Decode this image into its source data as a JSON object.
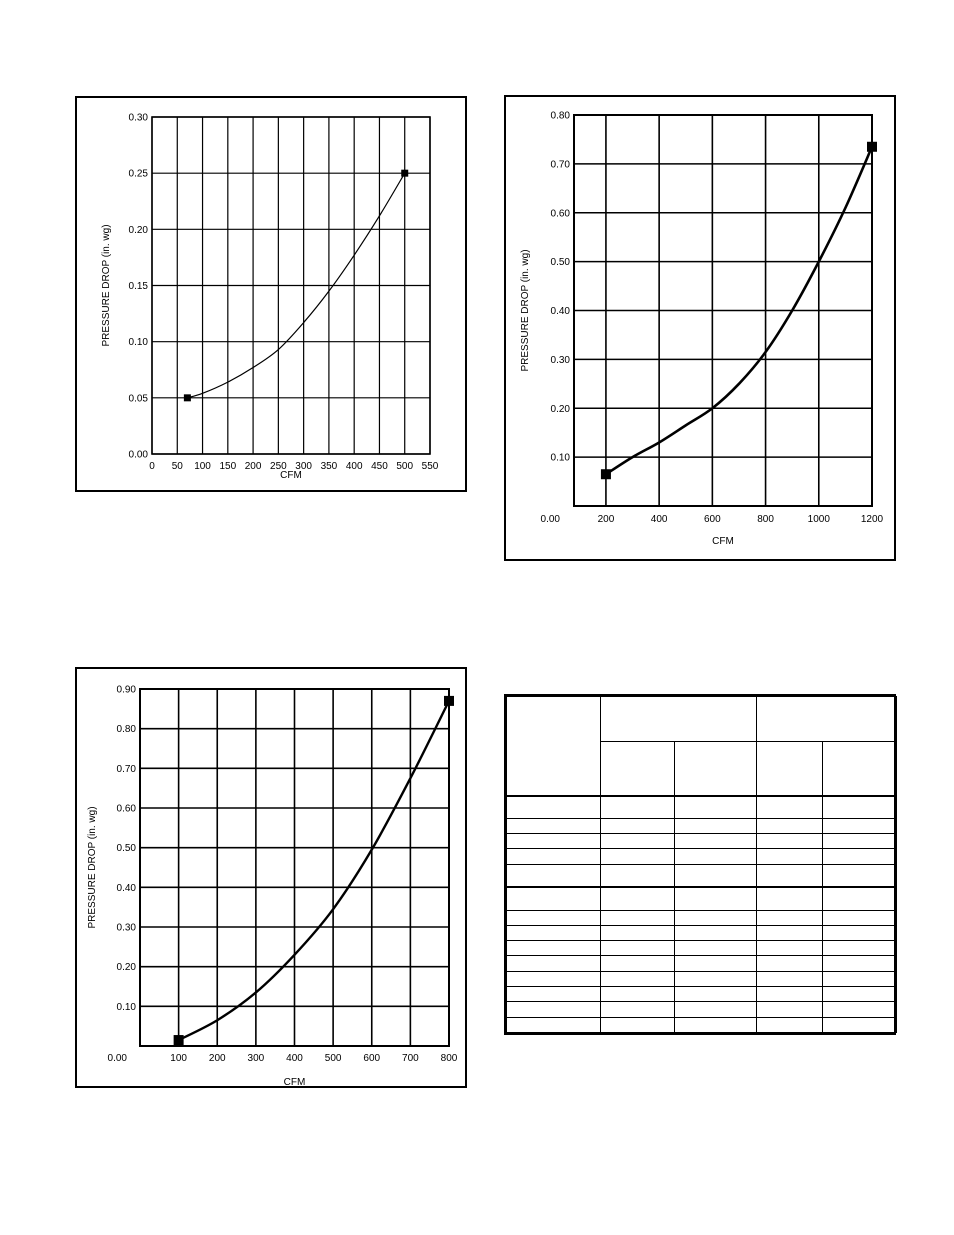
{
  "chart_data": [
    {
      "id": "chart-a",
      "type": "line",
      "xlabel": "CFM",
      "ylabel": "PRESSURE DROP (in. wg)",
      "xlim": [
        0,
        550
      ],
      "ylim": [
        0,
        0.3
      ],
      "x_ticks": [
        0,
        50,
        100,
        150,
        200,
        250,
        300,
        350,
        400,
        450,
        500,
        550
      ],
      "x_tick_labels": [
        "0",
        "50",
        "100",
        "150",
        "200",
        "250",
        "300",
        "350",
        "400",
        "450",
        "500",
        "550"
      ],
      "y_ticks": [
        0,
        0.05,
        0.1,
        0.15,
        0.2,
        0.25,
        0.3
      ],
      "y_tick_labels": [
        "0.00",
        "0.05",
        "0.10",
        "0.15",
        "0.20",
        "0.25",
        "0.30"
      ],
      "grid": true,
      "series": [
        {
          "x": [
            70,
            100,
            150,
            200,
            250,
            300,
            350,
            400,
            450,
            500
          ],
          "y": [
            0.05,
            0.054,
            0.064,
            0.077,
            0.093,
            0.117,
            0.145,
            0.177,
            0.212,
            0.25
          ]
        }
      ],
      "markers": {
        "x": [
          70,
          500
        ],
        "y": [
          0.05,
          0.25
        ]
      }
    },
    {
      "id": "chart-b",
      "type": "line",
      "xlabel": "CFM",
      "ylabel": "PRESSURE DROP (in. wg)",
      "xlim": [
        80,
        1200
      ],
      "ylim": [
        0,
        0.8
      ],
      "x_ticks": [
        200,
        400,
        600,
        800,
        1000,
        1200
      ],
      "x_tick_labels": [
        "200",
        "400",
        "600",
        "800",
        "1000",
        "1200"
      ],
      "y_ticks": [
        0.1,
        0.2,
        0.3,
        0.4,
        0.5,
        0.6,
        0.7,
        0.8
      ],
      "y_tick_labels": [
        "0.10",
        "0.20",
        "0.30",
        "0.40",
        "0.50",
        "0.60",
        "0.70",
        "0.80"
      ],
      "origin_label": "0.00",
      "grid": true,
      "series": [
        {
          "x": [
            200,
            300,
            400,
            500,
            600,
            700,
            800,
            900,
            1000,
            1100,
            1200
          ],
          "y": [
            0.065,
            0.1,
            0.13,
            0.165,
            0.2,
            0.25,
            0.315,
            0.4,
            0.5,
            0.61,
            0.735
          ]
        }
      ],
      "markers": {
        "x": [
          200,
          1200
        ],
        "y": [
          0.065,
          0.735
        ]
      }
    },
    {
      "id": "chart-c",
      "type": "line",
      "xlabel": "CFM",
      "ylabel": "PRESSURE DROP (in. wg)",
      "xlim": [
        0,
        800
      ],
      "ylim": [
        0,
        0.9
      ],
      "x_ticks": [
        100,
        200,
        300,
        400,
        500,
        600,
        700,
        800
      ],
      "x_tick_labels": [
        "100",
        "200",
        "300",
        "400",
        "500",
        "600",
        "700",
        "800"
      ],
      "y_ticks": [
        0.1,
        0.2,
        0.3,
        0.4,
        0.5,
        0.6,
        0.7,
        0.8,
        0.9
      ],
      "y_tick_labels": [
        "0.10",
        "0.20",
        "0.30",
        "0.40",
        "0.50",
        "0.60",
        "0.70",
        "0.80",
        "0.90"
      ],
      "origin_label": "0.00",
      "grid": true,
      "series": [
        {
          "x": [
            100,
            200,
            300,
            400,
            500,
            600,
            700,
            800
          ],
          "y": [
            0.015,
            0.065,
            0.135,
            0.23,
            0.345,
            0.495,
            0.675,
            0.87
          ]
        }
      ],
      "markers": {
        "x": [
          100,
          800
        ],
        "y": [
          0.015,
          0.87
        ]
      }
    }
  ],
  "table": {
    "header_rows": 2,
    "body_rows": 14
  }
}
